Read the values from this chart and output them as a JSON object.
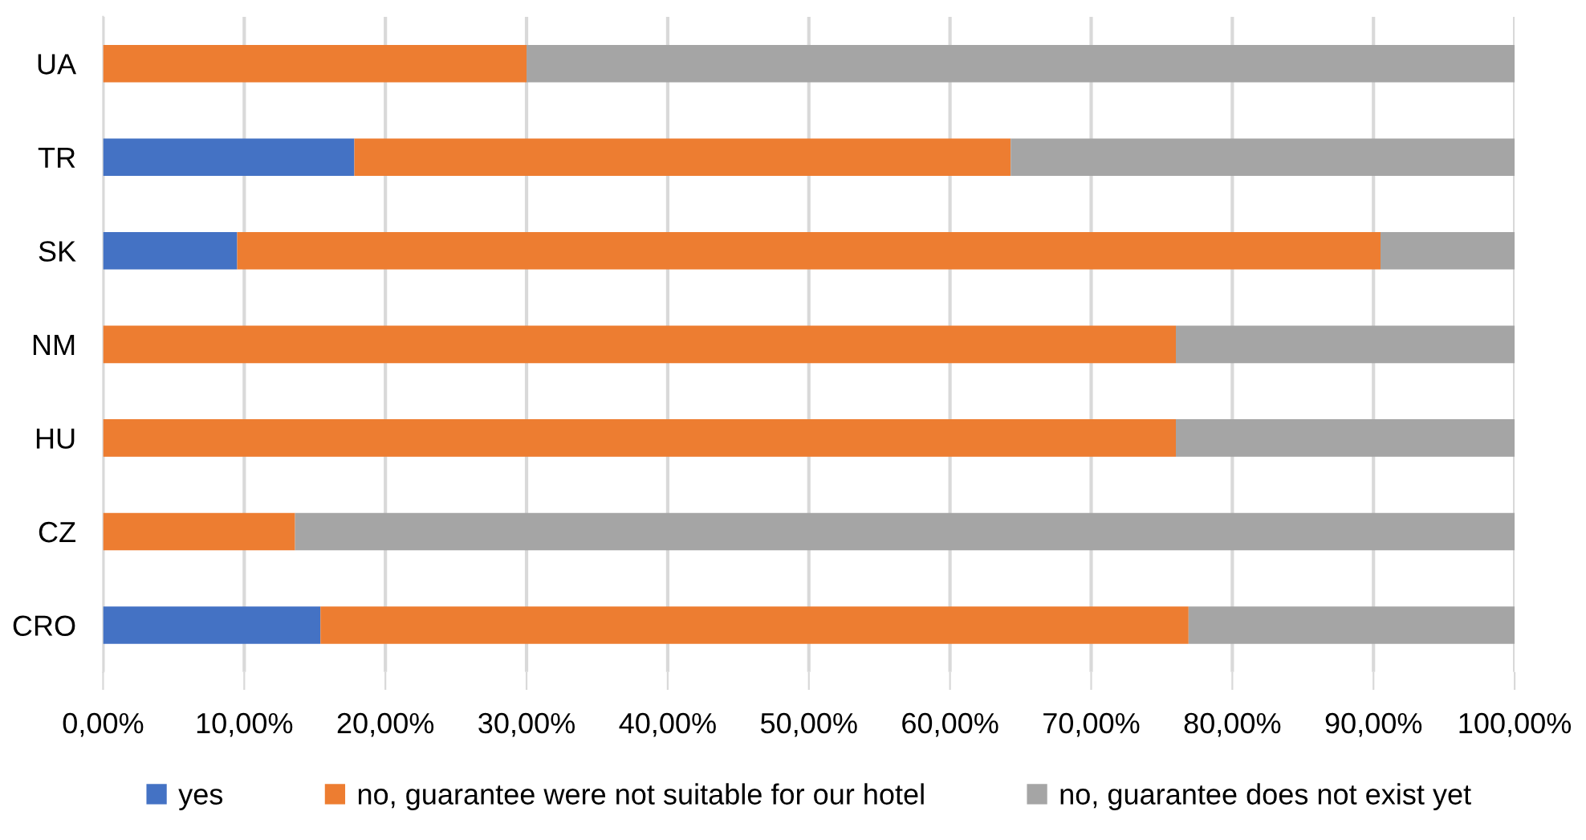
{
  "chart_data": {
    "type": "bar",
    "orientation": "horizontal",
    "stacked": true,
    "categories": [
      "UA",
      "TR",
      "SK",
      "NM",
      "HU",
      "CZ",
      "CRO"
    ],
    "series": [
      {
        "name": "yes",
        "color": "#4472c4",
        "values": [
          0,
          17.8,
          9.5,
          0,
          0,
          0,
          15.4
        ]
      },
      {
        "name": "no, guarantee were not suitable for our hotel",
        "color": "#ed7d31",
        "values": [
          30.0,
          46.5,
          81.0,
          76.0,
          76.0,
          13.6,
          61.5
        ]
      },
      {
        "name": "no, guarantee does not exist yet",
        "color": "#a5a5a5",
        "values": [
          70.0,
          35.7,
          9.5,
          24.0,
          24.0,
          86.4,
          23.1
        ]
      }
    ],
    "xlim": [
      0,
      100
    ],
    "xticks": [
      {
        "value": 0,
        "label": "0,00%"
      },
      {
        "value": 10,
        "label": "10,00%"
      },
      {
        "value": 20,
        "label": "20,00%"
      },
      {
        "value": 30,
        "label": "30,00%"
      },
      {
        "value": 40,
        "label": "40,00%"
      },
      {
        "value": 50,
        "label": "50,00%"
      },
      {
        "value": 60,
        "label": "60,00%"
      },
      {
        "value": 70,
        "label": "70,00%"
      },
      {
        "value": 80,
        "label": "80,00%"
      },
      {
        "value": 90,
        "label": "90,00%"
      },
      {
        "value": 100,
        "label": "100,00%"
      }
    ],
    "grid": "x",
    "legend": "bottom"
  }
}
